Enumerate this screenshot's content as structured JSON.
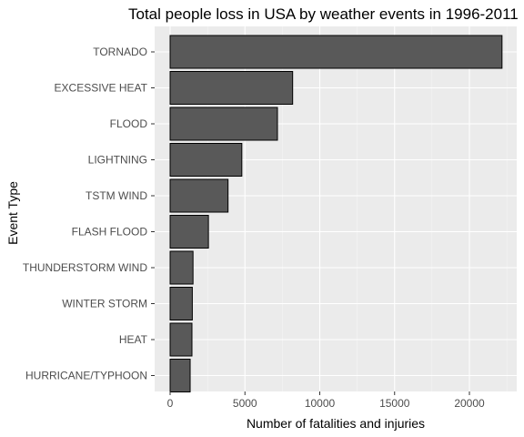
{
  "chart_data": {
    "type": "bar",
    "orientation": "horizontal",
    "title": "Total people loss in USA by weather events in 1996-2011",
    "xlabel": "Number of fatalities and injuries",
    "ylabel": "Event Type",
    "categories": [
      "TORNADO",
      "EXCESSIVE HEAT",
      "FLOOD",
      "LIGHTNING",
      "TSTM WIND",
      "FLASH FLOOD",
      "THUNDERSTORM WIND",
      "WINTER STORM",
      "HEAT",
      "HURRICANE/TYPHOON"
    ],
    "values": [
      22178,
      8188,
      7172,
      4792,
      3870,
      2561,
      1530,
      1483,
      1459,
      1339
    ],
    "xlim": [
      0,
      23300
    ],
    "xticks": [
      0,
      5000,
      10000,
      15000,
      20000
    ],
    "grid": true,
    "legend": "none",
    "colors": {
      "bar_fill": "#595959",
      "bar_stroke": "#000000",
      "panel_background": "#ebebeb",
      "grid_major": "#ffffff"
    }
  }
}
